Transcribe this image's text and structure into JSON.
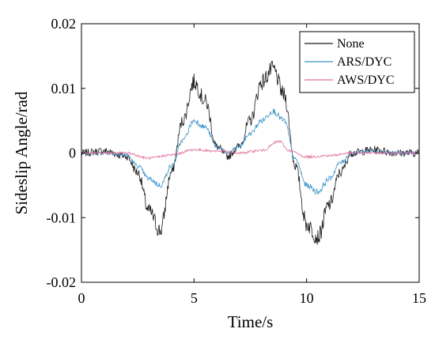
{
  "chart_data": {
    "type": "line",
    "xlabel": "Time/s",
    "ylabel": "Sideslip Angle/rad",
    "xlim": [
      0,
      15
    ],
    "ylim": [
      -0.02,
      0.02
    ],
    "xticks": [
      0,
      5,
      10,
      15
    ],
    "xtick_labels": [
      "0",
      "5",
      "10",
      "15"
    ],
    "yticks": [
      -0.02,
      -0.01,
      0,
      0.01,
      0.02
    ],
    "ytick_labels": [
      "-0.02",
      "-0.01",
      "0",
      "0.01",
      "0.02"
    ],
    "grid": false,
    "legend_position": "top-right",
    "series": [
      {
        "name": "None",
        "color": "#1a1a1a",
        "noise": 0.0013,
        "x": [
          0,
          1,
          2,
          2.5,
          3,
          3.5,
          4,
          4.5,
          5,
          5.5,
          6,
          6.5,
          7,
          7.5,
          8,
          8.5,
          9,
          9.5,
          10,
          10.5,
          11,
          11.5,
          12,
          13,
          14,
          15
        ],
        "y": [
          0,
          0.0003,
          -0.0005,
          -0.003,
          -0.009,
          -0.012,
          -0.003,
          0.005,
          0.011,
          0.008,
          0.001,
          -0.0005,
          0.001,
          0.005,
          0.011,
          0.013,
          0.009,
          -0.002,
          -0.011,
          -0.013,
          -0.008,
          -0.003,
          0,
          0.0005,
          0,
          0
        ]
      },
      {
        "name": "ARS/DYC",
        "color": "#3a93c8",
        "noise": 0.0006,
        "x": [
          0,
          1,
          2,
          2.5,
          3,
          3.5,
          4,
          4.5,
          5,
          5.5,
          6,
          6.5,
          7,
          7.5,
          8,
          8.5,
          9,
          9.5,
          10,
          10.5,
          11,
          11.5,
          12,
          13,
          14,
          15
        ],
        "y": [
          0,
          0,
          -0.0003,
          -0.002,
          -0.004,
          -0.005,
          -0.002,
          0.002,
          0.005,
          0.004,
          0.001,
          0,
          0.001,
          0.003,
          0.005,
          0.0065,
          0.005,
          -0.001,
          -0.005,
          -0.006,
          -0.004,
          -0.0015,
          0,
          0.0003,
          0,
          0
        ]
      },
      {
        "name": "AWS/DYC",
        "color": "#e0709a",
        "noise": 0.0004,
        "x": [
          0,
          1,
          2,
          3,
          4,
          5,
          6,
          7,
          8,
          8.8,
          9.2,
          10,
          11,
          12,
          13,
          14,
          15
        ],
        "y": [
          0,
          0,
          0,
          -0.0008,
          -0.0003,
          0.0005,
          0.0003,
          0,
          0.0004,
          0.0018,
          0.0004,
          -0.0006,
          -0.0004,
          0,
          0,
          0,
          0
        ]
      }
    ]
  }
}
